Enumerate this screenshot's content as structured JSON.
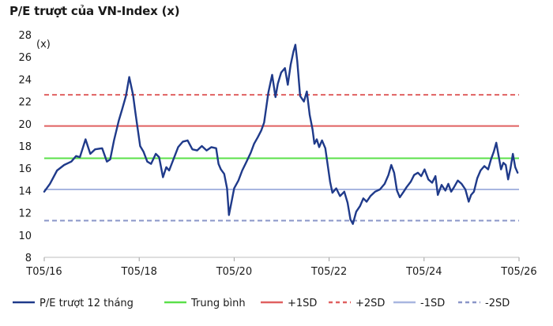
{
  "chart_data": {
    "type": "line",
    "title": "P/E trượt của VN-Index (x)",
    "unit_label": "(x)",
    "ylim": [
      8,
      28
    ],
    "yticks": [
      8,
      10,
      12,
      14,
      16,
      18,
      20,
      22,
      24,
      26,
      28
    ],
    "x_range": [
      2016.33,
      2026.33
    ],
    "xticks": [
      {
        "x": 2016.33,
        "label": "T05/16"
      },
      {
        "x": 2018.33,
        "label": "T05/18"
      },
      {
        "x": 2020.33,
        "label": "T05/20"
      },
      {
        "x": 2022.33,
        "label": "T05/22"
      },
      {
        "x": 2024.33,
        "label": "T05/24"
      },
      {
        "x": 2026.33,
        "label": "T05/26"
      }
    ],
    "grid": false,
    "legend_position": "bottom",
    "series": [
      {
        "name": "P/E trượt 12 tháng",
        "color": "#1f3a8a",
        "style": "solid",
        "points": [
          [
            2016.33,
            13.9
          ],
          [
            2016.45,
            14.6
          ],
          [
            2016.6,
            15.8
          ],
          [
            2016.75,
            16.3
          ],
          [
            2016.9,
            16.6
          ],
          [
            2017.0,
            17.1
          ],
          [
            2017.08,
            17.0
          ],
          [
            2017.2,
            18.6
          ],
          [
            2017.3,
            17.3
          ],
          [
            2017.4,
            17.7
          ],
          [
            2017.55,
            17.8
          ],
          [
            2017.65,
            16.6
          ],
          [
            2017.72,
            16.8
          ],
          [
            2017.8,
            18.5
          ],
          [
            2017.9,
            20.3
          ],
          [
            2017.97,
            21.3
          ],
          [
            2018.05,
            22.5
          ],
          [
            2018.12,
            24.2
          ],
          [
            2018.2,
            22.6
          ],
          [
            2018.25,
            21.0
          ],
          [
            2018.3,
            19.5
          ],
          [
            2018.35,
            18.0
          ],
          [
            2018.42,
            17.5
          ],
          [
            2018.5,
            16.6
          ],
          [
            2018.58,
            16.4
          ],
          [
            2018.68,
            17.3
          ],
          [
            2018.75,
            17.0
          ],
          [
            2018.83,
            15.2
          ],
          [
            2018.9,
            16.1
          ],
          [
            2018.96,
            15.8
          ],
          [
            2019.05,
            16.8
          ],
          [
            2019.15,
            17.9
          ],
          [
            2019.25,
            18.4
          ],
          [
            2019.35,
            18.5
          ],
          [
            2019.45,
            17.7
          ],
          [
            2019.55,
            17.6
          ],
          [
            2019.65,
            18.0
          ],
          [
            2019.75,
            17.6
          ],
          [
            2019.85,
            17.9
          ],
          [
            2019.95,
            17.8
          ],
          [
            2020.0,
            16.4
          ],
          [
            2020.05,
            15.9
          ],
          [
            2020.12,
            15.5
          ],
          [
            2020.18,
            14.2
          ],
          [
            2020.22,
            11.8
          ],
          [
            2020.28,
            13.1
          ],
          [
            2020.33,
            14.2
          ],
          [
            2020.42,
            14.9
          ],
          [
            2020.5,
            15.8
          ],
          [
            2020.58,
            16.5
          ],
          [
            2020.68,
            17.4
          ],
          [
            2020.75,
            18.2
          ],
          [
            2020.83,
            18.8
          ],
          [
            2020.9,
            19.4
          ],
          [
            2020.96,
            20.1
          ],
          [
            2021.05,
            22.8
          ],
          [
            2021.13,
            24.4
          ],
          [
            2021.2,
            22.4
          ],
          [
            2021.25,
            23.6
          ],
          [
            2021.32,
            24.6
          ],
          [
            2021.4,
            25.0
          ],
          [
            2021.46,
            23.5
          ],
          [
            2021.52,
            25.3
          ],
          [
            2021.58,
            26.5
          ],
          [
            2021.62,
            27.1
          ],
          [
            2021.66,
            25.6
          ],
          [
            2021.72,
            22.5
          ],
          [
            2021.8,
            22.0
          ],
          [
            2021.86,
            22.9
          ],
          [
            2021.92,
            20.8
          ],
          [
            2021.98,
            19.5
          ],
          [
            2022.02,
            18.2
          ],
          [
            2022.07,
            18.6
          ],
          [
            2022.12,
            17.9
          ],
          [
            2022.18,
            18.5
          ],
          [
            2022.25,
            17.8
          ],
          [
            2022.3,
            16.3
          ],
          [
            2022.35,
            14.8
          ],
          [
            2022.4,
            13.8
          ],
          [
            2022.48,
            14.2
          ],
          [
            2022.56,
            13.5
          ],
          [
            2022.65,
            13.9
          ],
          [
            2022.72,
            12.9
          ],
          [
            2022.78,
            11.4
          ],
          [
            2022.83,
            11.0
          ],
          [
            2022.9,
            12.1
          ],
          [
            2022.98,
            12.6
          ],
          [
            2023.05,
            13.3
          ],
          [
            2023.12,
            13.0
          ],
          [
            2023.2,
            13.5
          ],
          [
            2023.3,
            13.9
          ],
          [
            2023.4,
            14.1
          ],
          [
            2023.5,
            14.6
          ],
          [
            2023.58,
            15.4
          ],
          [
            2023.64,
            16.3
          ],
          [
            2023.7,
            15.6
          ],
          [
            2023.76,
            14.0
          ],
          [
            2023.82,
            13.4
          ],
          [
            2023.9,
            13.9
          ],
          [
            2023.96,
            14.3
          ],
          [
            2024.05,
            14.8
          ],
          [
            2024.12,
            15.4
          ],
          [
            2024.2,
            15.6
          ],
          [
            2024.27,
            15.3
          ],
          [
            2024.34,
            15.9
          ],
          [
            2024.42,
            15.0
          ],
          [
            2024.5,
            14.7
          ],
          [
            2024.57,
            15.3
          ],
          [
            2024.62,
            13.6
          ],
          [
            2024.7,
            14.5
          ],
          [
            2024.78,
            14.0
          ],
          [
            2024.84,
            14.6
          ],
          [
            2024.9,
            13.9
          ],
          [
            2024.96,
            14.3
          ],
          [
            2025.04,
            14.9
          ],
          [
            2025.12,
            14.6
          ],
          [
            2025.2,
            14.1
          ],
          [
            2025.27,
            13.0
          ],
          [
            2025.32,
            13.6
          ],
          [
            2025.38,
            13.9
          ],
          [
            2025.45,
            15.1
          ],
          [
            2025.52,
            15.8
          ],
          [
            2025.6,
            16.2
          ],
          [
            2025.68,
            15.9
          ],
          [
            2025.74,
            16.8
          ],
          [
            2025.8,
            17.5
          ],
          [
            2025.85,
            18.3
          ],
          [
            2025.9,
            17.1
          ],
          [
            2025.95,
            15.9
          ],
          [
            2026.0,
            16.5
          ],
          [
            2026.05,
            16.3
          ],
          [
            2026.1,
            15.0
          ],
          [
            2026.15,
            16.0
          ],
          [
            2026.2,
            17.3
          ],
          [
            2026.25,
            16.1
          ],
          [
            2026.3,
            15.6
          ]
        ]
      },
      {
        "name": "Trung bình",
        "color": "#5be04a",
        "style": "solid",
        "value": 16.9
      },
      {
        "name": "+1SD",
        "color": "#e06060",
        "style": "solid",
        "value": 19.8
      },
      {
        "name": "+2SD",
        "color": "#e06060",
        "style": "dashed",
        "value": 22.6
      },
      {
        "name": "-1SD",
        "color": "#a8b6e0",
        "style": "solid",
        "value": 14.1
      },
      {
        "name": "-2SD",
        "color": "#8a96c8",
        "style": "dashed",
        "value": 11.3
      }
    ]
  }
}
